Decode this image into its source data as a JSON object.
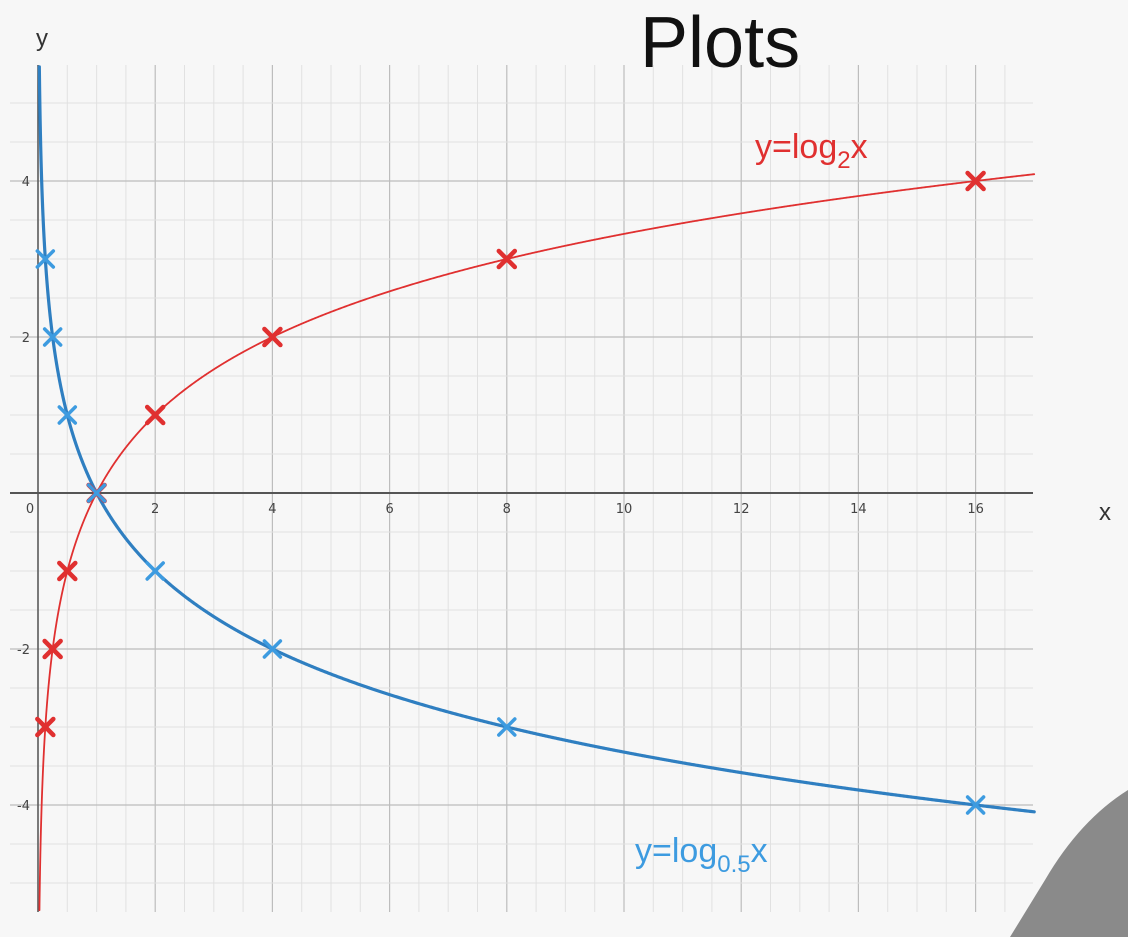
{
  "title": "Plots",
  "chart_data": {
    "type": "line",
    "title": "Plots",
    "xlabel": "x",
    "ylabel": "y",
    "xlim": [
      -0.5,
      17
    ],
    "ylim": [
      -5.3,
      5.5
    ],
    "grid": true,
    "x_ticks": [
      0,
      2,
      4,
      6,
      8,
      10,
      12,
      14,
      16
    ],
    "y_ticks": [
      -4,
      -2,
      2,
      4
    ],
    "series": [
      {
        "name": "y=log2x",
        "label_main": "y=log",
        "label_sub": "2",
        "label_tail": "x",
        "color": "#e03030",
        "base": 2,
        "marker": "x",
        "points": [
          {
            "x": 0.125,
            "y": -3
          },
          {
            "x": 0.25,
            "y": -2
          },
          {
            "x": 0.5,
            "y": -1
          },
          {
            "x": 1,
            "y": 0
          },
          {
            "x": 2,
            "y": 1
          },
          {
            "x": 4,
            "y": 2
          },
          {
            "x": 8,
            "y": 3
          },
          {
            "x": 16,
            "y": 4
          }
        ]
      },
      {
        "name": "y=log0.5x",
        "label_main": "y=log",
        "label_sub": "0.5",
        "label_tail": "x",
        "color": "#2f7fc1",
        "marker_color": "#3d9be0",
        "base": 0.5,
        "marker": "x",
        "points": [
          {
            "x": 0.125,
            "y": 3
          },
          {
            "x": 0.25,
            "y": 2
          },
          {
            "x": 0.5,
            "y": 1
          },
          {
            "x": 1,
            "y": 0
          },
          {
            "x": 2,
            "y": -1
          },
          {
            "x": 4,
            "y": -2
          },
          {
            "x": 8,
            "y": -3
          },
          {
            "x": 16,
            "y": -4
          }
        ]
      }
    ]
  }
}
